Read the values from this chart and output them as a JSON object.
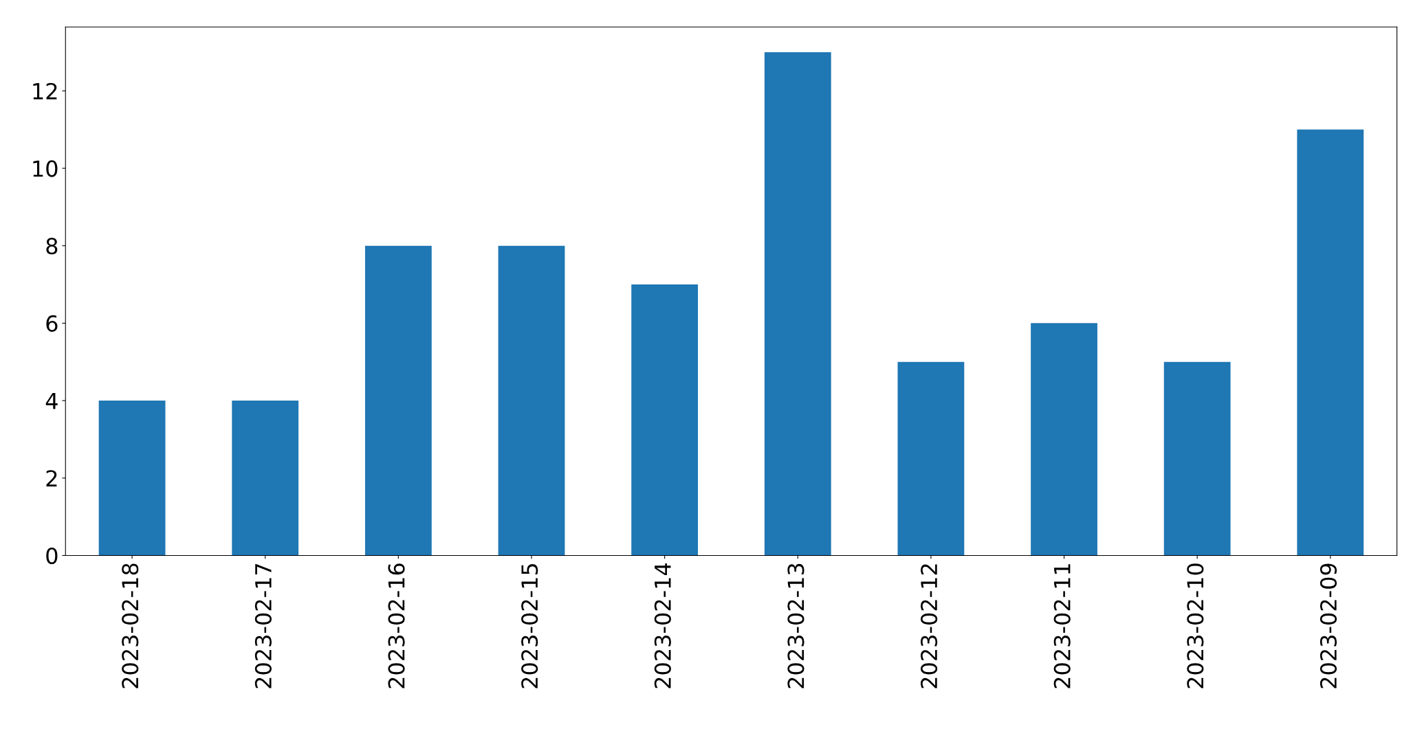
{
  "chart_data": {
    "type": "bar",
    "categories": [
      "2023-02-18",
      "2023-02-17",
      "2023-02-16",
      "2023-02-15",
      "2023-02-14",
      "2023-02-13",
      "2023-02-12",
      "2023-02-11",
      "2023-02-10",
      "2023-02-09"
    ],
    "values": [
      4,
      4,
      8,
      8,
      7,
      13,
      5,
      6,
      5,
      11
    ],
    "color": "#1f77b4",
    "ylim": [
      0,
      13.65
    ],
    "yticks": [
      0,
      2,
      4,
      6,
      8,
      10,
      12
    ],
    "grid": false,
    "legend": false
  }
}
